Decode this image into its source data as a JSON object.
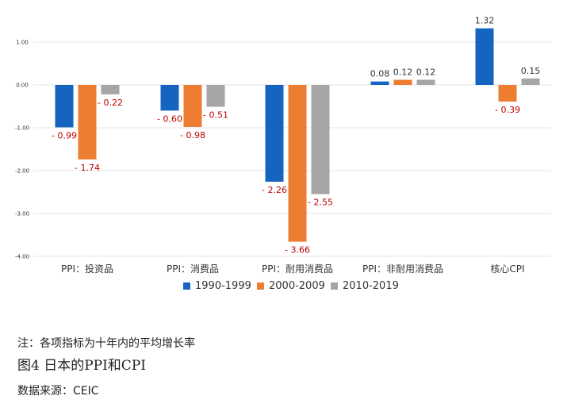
{
  "chart_data": {
    "type": "bar",
    "categories": [
      "PPI：投资品",
      "PPI：消费品",
      "PPI：耐用消费品",
      "PPI：非耐用消费品",
      "核心CPI"
    ],
    "series": [
      {
        "name": "1990-1999",
        "color": "#1565C0",
        "values": [
          -0.99,
          -0.6,
          -2.26,
          0.08,
          1.32
        ],
        "labels": [
          "- 0.99",
          "- 0.60",
          "- 2.26",
          "0.08",
          "1.32"
        ]
      },
      {
        "name": "2000-2009",
        "color": "#ED7D31",
        "values": [
          -1.74,
          -0.98,
          -3.66,
          0.12,
          -0.39
        ],
        "labels": [
          "- 1.74",
          "- 0.98",
          "- 3.66",
          "0.12",
          "- 0.39"
        ]
      },
      {
        "name": "2010-2019",
        "color": "#A5A5A5",
        "values": [
          -0.22,
          -0.51,
          -2.55,
          0.12,
          0.15
        ],
        "labels": [
          "- 0.22",
          "- 0.51",
          "- 2.55",
          "0.12",
          "0.15"
        ]
      }
    ],
    "yticks": [
      "1.00",
      "0.00",
      "-1.00",
      "-2.00",
      "-3.00",
      "-4.00"
    ],
    "ylim": [
      -4,
      1.3
    ],
    "grid": true,
    "legend": "bottom",
    "negative_label_color": "#C00000",
    "positive_label_color": "#333333"
  },
  "note": "注：各项指标为十年内的平均增长率",
  "figure_title": "图4 日本的PPI和CPI",
  "source": "数据来源：CEIC"
}
